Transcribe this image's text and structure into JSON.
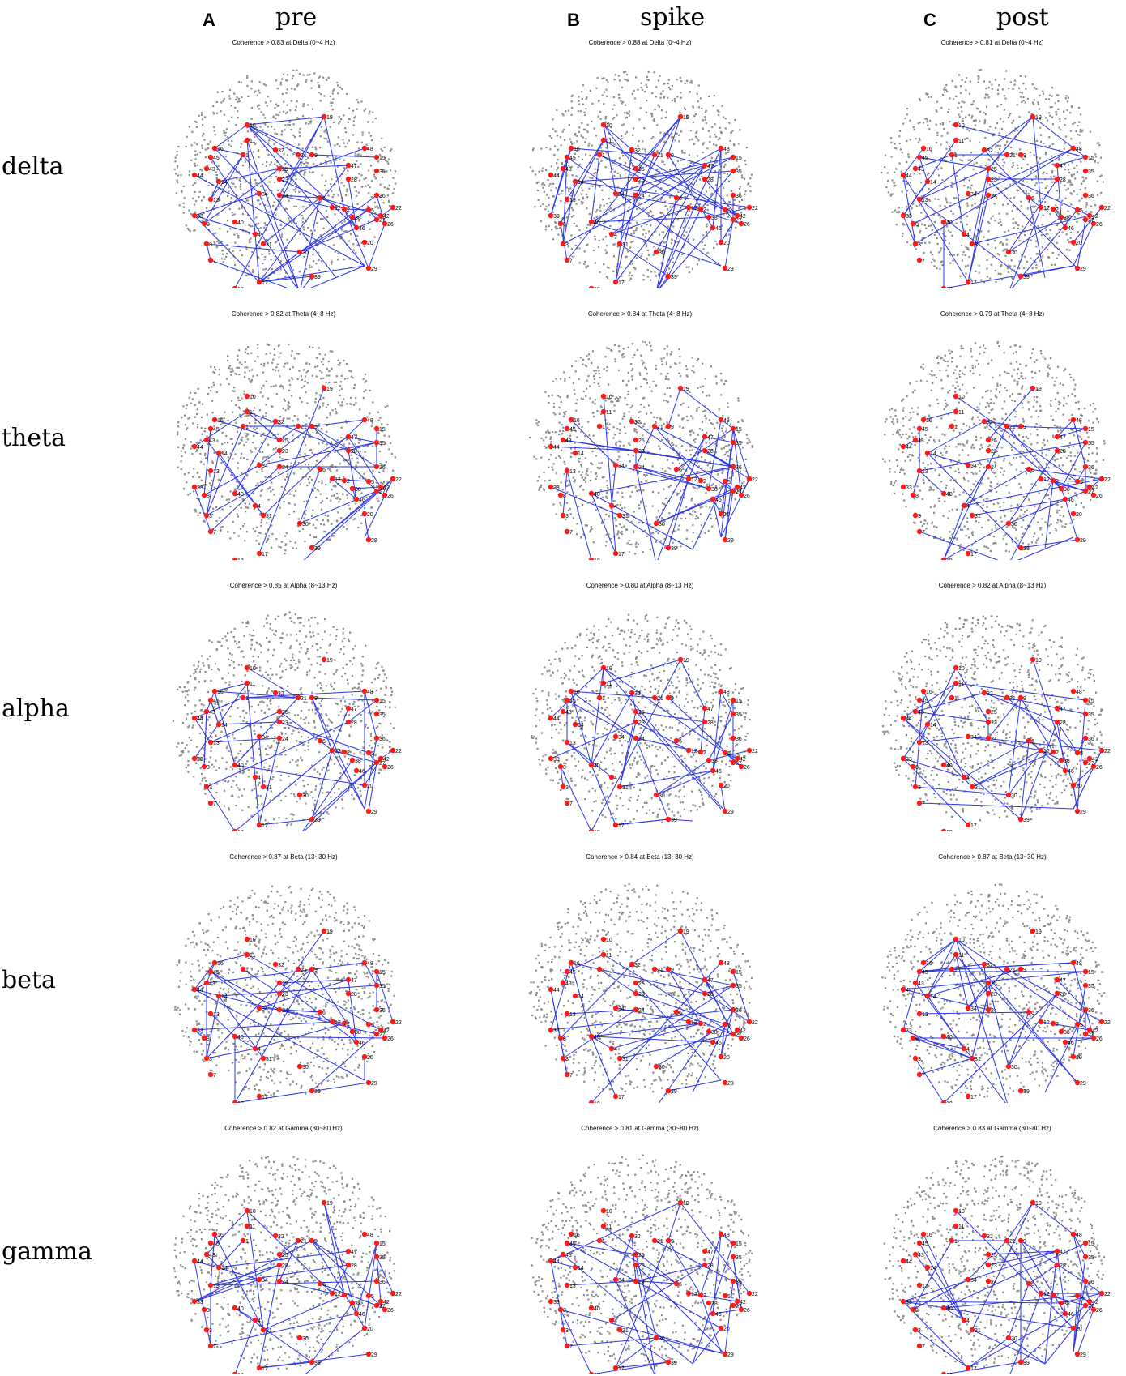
{
  "columns": [
    {
      "letter": "A",
      "name": "pre"
    },
    {
      "letter": "B",
      "name": "spike"
    },
    {
      "letter": "C",
      "name": "post"
    }
  ],
  "rows": [
    "delta",
    "theta",
    "alpha",
    "beta",
    "gamma"
  ],
  "panels": [
    [
      "Coherence > 0.83 at Delta (0~4 Hz)",
      "Coherence > 0.88 at Delta (0~4 Hz)",
      "Coherence > 0.81 at Delta (0~4 Hz)"
    ],
    [
      "Coherence > 0.82 at Theta (4~8 Hz)",
      "Coherence > 0.84 at Theta (4~8 Hz)",
      "Coherence > 0.79 at Theta (4~8 Hz)"
    ],
    [
      "Coherence > 0.85 at Alpha (8~13 Hz)",
      "Coherence > 0.80 at Alpha (8~13 Hz)",
      "Coherence > 0.82 at Alpha (8~13 Hz)"
    ],
    [
      "Coherence > 0.87 at Beta (13~30 Hz)",
      "Coherence > 0.84 at Beta (13~30 Hz)",
      "Coherence > 0.87 at Beta (13~30 Hz)"
    ],
    [
      "Coherence > 0.82 at Gamma (30~80 Hz)",
      "Coherence > 0.81 at Gamma (30~80 Hz)",
      "Coherence > 0.83 at Gamma (30~80 Hz)"
    ]
  ],
  "electrodes": [
    "10",
    "19",
    "11",
    "16",
    "1",
    "32",
    "21",
    "9",
    "48",
    "43",
    "45",
    "47",
    "15",
    "28",
    "25",
    "23",
    "35",
    "44",
    "14",
    "13",
    "34",
    "24",
    "6",
    "12",
    "2",
    "36",
    "5",
    "42",
    "26",
    "22",
    "38",
    "27",
    "40",
    "46",
    "8",
    "33",
    "4",
    "31",
    "30",
    "39",
    "20",
    "3",
    "29",
    "7",
    "18",
    "17"
  ],
  "colors": {
    "node": "#ff1a1a",
    "edge": "#2a35e8",
    "background_dot": "#8c8c8c"
  }
}
